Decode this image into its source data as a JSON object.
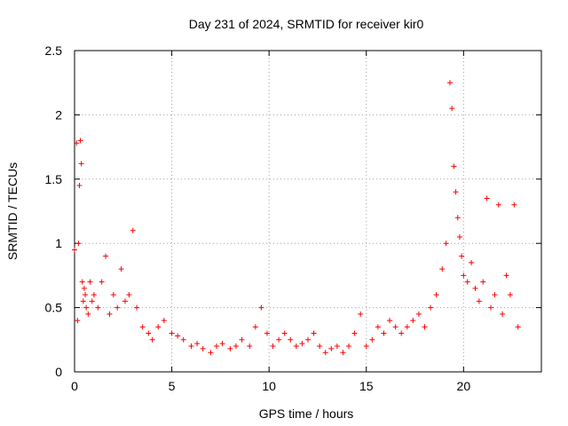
{
  "chart_data": {
    "type": "scatter",
    "title": "Day 231 of 2024, SRMTID for receiver kir0",
    "xlabel": "GPS time / hours",
    "ylabel": "SRMTID / TECUs",
    "xlim": [
      0,
      24
    ],
    "ylim": [
      0,
      2.5
    ],
    "xticks": [
      0,
      5,
      10,
      15,
      20
    ],
    "xtick_labels": [
      "0",
      "5",
      "10",
      "15",
      "20"
    ],
    "yticks": [
      0,
      0.5,
      1,
      1.5,
      2,
      2.5
    ],
    "ytick_labels": [
      "0",
      "0.5",
      "1",
      "1.5",
      "2",
      "2.5"
    ],
    "grid": true,
    "marker": "+",
    "color": "#ff0000",
    "series": [
      {
        "name": "kir0",
        "x": [
          0.0,
          0.1,
          0.15,
          0.2,
          0.25,
          0.3,
          0.35,
          0.4,
          0.45,
          0.5,
          0.55,
          0.6,
          0.7,
          0.8,
          0.9,
          1.0,
          1.2,
          1.4,
          1.6,
          1.8,
          2.0,
          2.2,
          2.4,
          2.6,
          2.8,
          3.0,
          3.2,
          3.5,
          3.8,
          4.0,
          4.3,
          4.6,
          5.0,
          5.3,
          5.6,
          6.0,
          6.3,
          6.6,
          7.0,
          7.3,
          7.6,
          8.0,
          8.3,
          8.6,
          9.0,
          9.3,
          9.6,
          9.9,
          10.2,
          10.5,
          10.8,
          11.1,
          11.4,
          11.7,
          12.0,
          12.3,
          12.6,
          12.9,
          13.2,
          13.5,
          13.8,
          14.1,
          14.4,
          14.7,
          15.0,
          15.3,
          15.6,
          15.9,
          16.2,
          16.5,
          16.8,
          17.1,
          17.4,
          17.7,
          18.0,
          18.3,
          18.6,
          18.9,
          19.1,
          19.3,
          19.4,
          19.5,
          19.6,
          19.7,
          19.8,
          19.9,
          20.0,
          20.2,
          20.4,
          20.6,
          20.8,
          21.0,
          21.2,
          21.4,
          21.6,
          21.8,
          22.0,
          22.2,
          22.4,
          22.6,
          22.8
        ],
        "y": [
          0.95,
          1.78,
          0.4,
          1.0,
          1.45,
          1.8,
          1.62,
          0.7,
          0.55,
          0.65,
          0.6,
          0.5,
          0.45,
          0.7,
          0.55,
          0.6,
          0.5,
          0.7,
          0.9,
          0.45,
          0.6,
          0.5,
          0.8,
          0.55,
          0.6,
          1.1,
          0.5,
          0.35,
          0.3,
          0.25,
          0.35,
          0.4,
          0.3,
          0.28,
          0.25,
          0.2,
          0.22,
          0.18,
          0.15,
          0.2,
          0.22,
          0.18,
          0.2,
          0.25,
          0.2,
          0.35,
          0.5,
          0.3,
          0.2,
          0.25,
          0.3,
          0.25,
          0.2,
          0.22,
          0.25,
          0.3,
          0.2,
          0.15,
          0.18,
          0.2,
          0.15,
          0.2,
          0.3,
          0.45,
          0.2,
          0.25,
          0.35,
          0.3,
          0.4,
          0.35,
          0.3,
          0.35,
          0.4,
          0.45,
          0.35,
          0.5,
          0.6,
          0.8,
          1.0,
          2.25,
          2.05,
          1.6,
          1.4,
          1.2,
          1.05,
          0.9,
          0.75,
          0.7,
          0.85,
          0.65,
          0.55,
          0.7,
          1.35,
          0.5,
          0.6,
          1.3,
          0.45,
          0.75,
          0.6,
          1.3,
          0.35
        ]
      }
    ]
  }
}
